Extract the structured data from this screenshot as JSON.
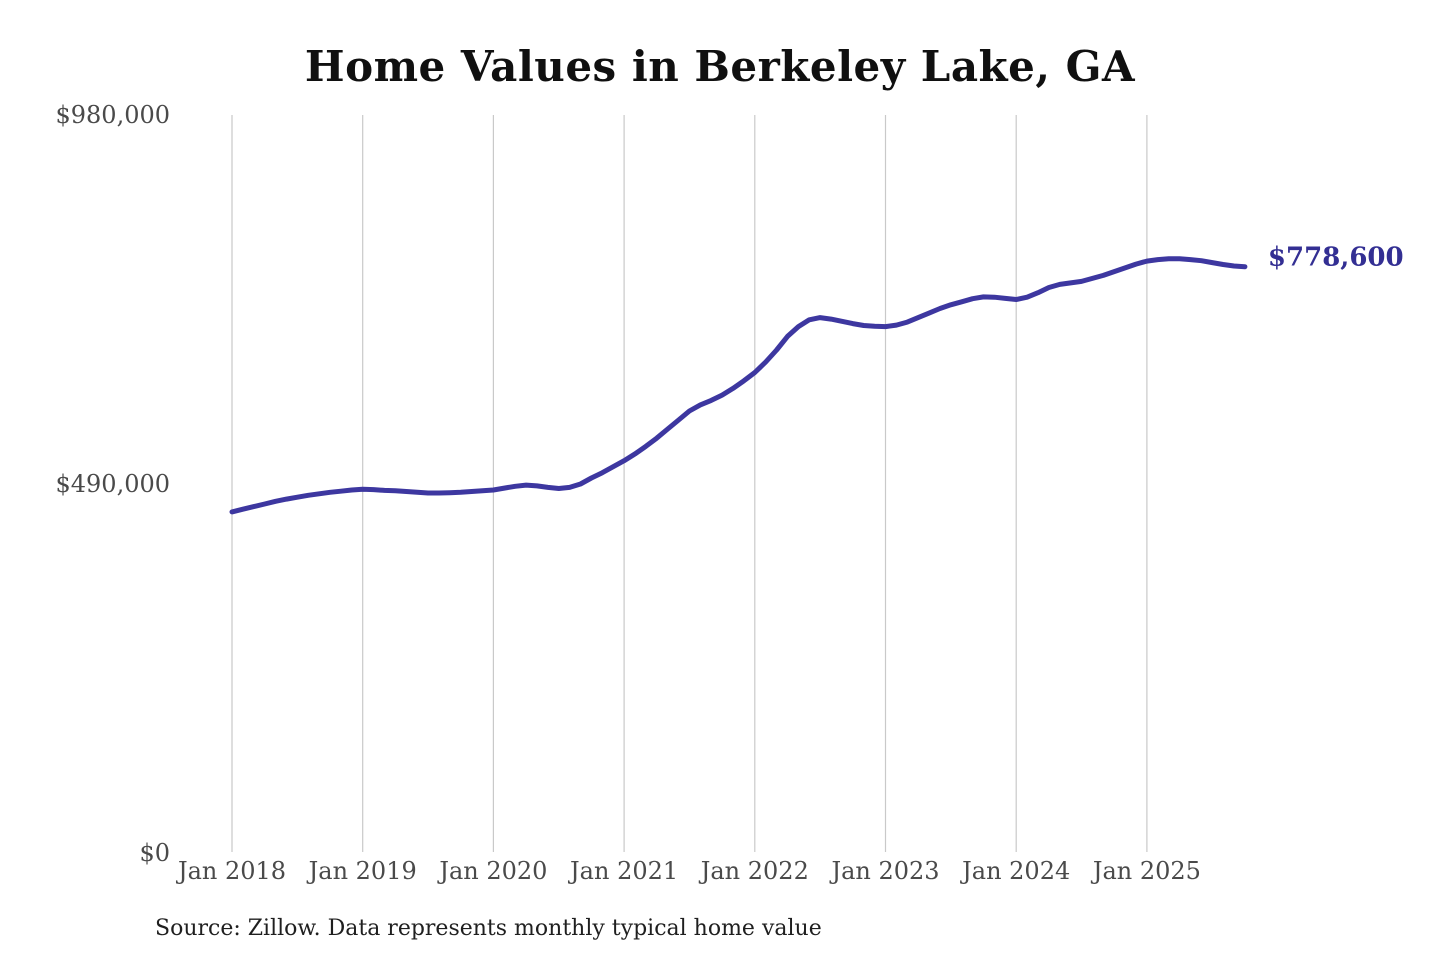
{
  "title": "Home Values in Berkeley Lake, GA",
  "source_note": "Source: Zillow. Data represents monthly typical home value",
  "colors": {
    "line": "#3d37a0",
    "end_label": "#332f93",
    "gridline": "#c9c9c9",
    "tick_label": "#4a4a4a",
    "title": "#101010",
    "source": "#1f1f1f",
    "background": "#ffffff"
  },
  "chart_data": {
    "type": "line",
    "title": "Home Values in Berkeley Lake, GA",
    "series_name": "Monthly typical home value",
    "unit": "USD",
    "grid": "vertical-only",
    "legend": "none",
    "ylim": [
      0,
      980000
    ],
    "end_label": "$778,600",
    "end_value": 778600,
    "y_ticks": [
      {
        "value": 980000,
        "label": "$980,000"
      },
      {
        "value": 490000,
        "label": "$490,000"
      },
      {
        "value": 0,
        "label": "$0"
      }
    ],
    "x_ticks": [
      "Jan 2018",
      "Jan 2019",
      "Jan 2020",
      "Jan 2021",
      "Jan 2022",
      "Jan 2023",
      "Jan 2024",
      "Jan 2025"
    ],
    "x": [
      "2018-01",
      "2018-02",
      "2018-03",
      "2018-04",
      "2018-05",
      "2018-06",
      "2018-07",
      "2018-08",
      "2018-09",
      "2018-10",
      "2018-11",
      "2018-12",
      "2019-01",
      "2019-02",
      "2019-03",
      "2019-04",
      "2019-05",
      "2019-06",
      "2019-07",
      "2019-08",
      "2019-09",
      "2019-10",
      "2019-11",
      "2019-12",
      "2020-01",
      "2020-02",
      "2020-03",
      "2020-04",
      "2020-05",
      "2020-06",
      "2020-07",
      "2020-08",
      "2020-09",
      "2020-10",
      "2020-11",
      "2020-12",
      "2021-01",
      "2021-02",
      "2021-03",
      "2021-04",
      "2021-05",
      "2021-06",
      "2021-07",
      "2021-08",
      "2021-09",
      "2021-10",
      "2021-11",
      "2021-12",
      "2022-01",
      "2022-02",
      "2022-03",
      "2022-04",
      "2022-05",
      "2022-06",
      "2022-07",
      "2022-08",
      "2022-09",
      "2022-10",
      "2022-11",
      "2022-12",
      "2023-01",
      "2023-02",
      "2023-03",
      "2023-04",
      "2023-05",
      "2023-06",
      "2023-07",
      "2023-08",
      "2023-09",
      "2023-10",
      "2023-11",
      "2023-12",
      "2024-01",
      "2024-02",
      "2024-03",
      "2024-04",
      "2024-05",
      "2024-06",
      "2024-07",
      "2024-08",
      "2024-09",
      "2024-10",
      "2024-11",
      "2024-12",
      "2025-01",
      "2025-02",
      "2025-03",
      "2025-04",
      "2025-05",
      "2025-06",
      "2025-07",
      "2025-08",
      "2025-09",
      "2025-10"
    ],
    "values": [
      453000,
      456500,
      460000,
      463500,
      467000,
      470000,
      472500,
      475000,
      477000,
      479000,
      480500,
      482000,
      483000,
      482500,
      481500,
      481000,
      480000,
      479000,
      478000,
      478000,
      478500,
      479000,
      480000,
      481000,
      482000,
      484500,
      487000,
      488500,
      487500,
      485500,
      484000,
      485500,
      490000,
      498000,
      505000,
      513000,
      521000,
      530000,
      540000,
      551000,
      563000,
      575000,
      587000,
      595000,
      601000,
      608000,
      617000,
      627000,
      638000,
      652000,
      668000,
      686000,
      699000,
      708000,
      711000,
      709000,
      706000,
      703000,
      700500,
      699500,
      699000,
      701000,
      705000,
      711000,
      717000,
      723000,
      728000,
      732000,
      736000,
      738500,
      738000,
      736500,
      735000,
      738000,
      744000,
      751000,
      755000,
      757000,
      759000,
      763000,
      767000,
      772000,
      777000,
      782000,
      786000,
      788000,
      789000,
      789000,
      788000,
      786500,
      784000,
      781500,
      779500,
      778600
    ]
  }
}
